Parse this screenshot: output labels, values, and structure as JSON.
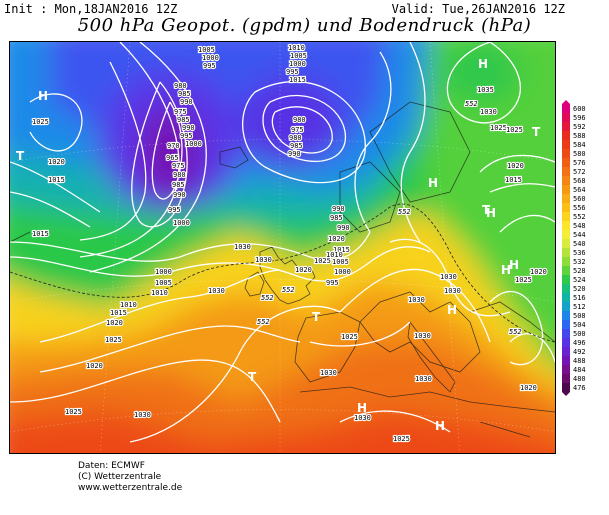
{
  "header": {
    "init": "Init : Mon,18JAN2016 12Z",
    "valid": "Valid: Tue,26JAN2016 12Z",
    "title": "500 hPa Geopot. (gpdm) und Bodendruck (hPa)"
  },
  "legend": {
    "values": [
      "600",
      "596",
      "592",
      "588",
      "584",
      "580",
      "576",
      "572",
      "568",
      "564",
      "560",
      "556",
      "552",
      "548",
      "544",
      "540",
      "536",
      "532",
      "528",
      "524",
      "520",
      "516",
      "512",
      "508",
      "504",
      "500",
      "496",
      "492",
      "488",
      "484",
      "480",
      "476"
    ],
    "colors": [
      "#e0007a",
      "#e20a58",
      "#e6183a",
      "#e92a1e",
      "#ec3a16",
      "#ee4b14",
      "#f05e14",
      "#f27114",
      "#f48514",
      "#f69814",
      "#f8ac16",
      "#fac018",
      "#fcd41e",
      "#fde52a",
      "#f4ee3a",
      "#d8ec3e",
      "#b4e43c",
      "#8edc3a",
      "#5ed43a",
      "#2ec84a",
      "#18c07a",
      "#10b4a4",
      "#12a2cc",
      "#1c86e8",
      "#2c66f2",
      "#4248f0",
      "#5832e6",
      "#6a22d2",
      "#7414b6",
      "#78108e",
      "#6a0c6a",
      "#4c0a4c"
    ]
  },
  "map": {
    "pressure_systems": [
      {
        "label": "H",
        "name": "high-atlantic-nw"
      },
      {
        "label": "H",
        "name": "high-scandinavia"
      },
      {
        "label": "T",
        "name": "low-north-atlantic"
      },
      {
        "label": "T",
        "name": "low-russia"
      },
      {
        "label": "H",
        "name": "high-central-europe"
      },
      {
        "label": "H",
        "name": "high-east-europe"
      },
      {
        "label": "H",
        "name": "high-azores"
      },
      {
        "label": "T",
        "name": "low-iberia"
      },
      {
        "label": "T",
        "name": "low-biscay"
      },
      {
        "label": "H",
        "name": "high-med-west"
      },
      {
        "label": "H",
        "name": "high-med-east"
      },
      {
        "label": "T",
        "name": "low-west-edge"
      },
      {
        "label": "T",
        "name": "low-baltic"
      },
      {
        "label": "H",
        "name": "high-balkan"
      },
      {
        "label": "H",
        "name": "high-russia-south"
      }
    ],
    "isobar_labels": [
      "1005",
      "1000",
      "995",
      "1010",
      "1005",
      "1000",
      "995",
      "1015",
      "1025",
      "980",
      "985",
      "990",
      "975",
      "985",
      "990",
      "995",
      "1000",
      "970",
      "965",
      "975",
      "980",
      "985",
      "990",
      "995",
      "1000",
      "980",
      "975",
      "980",
      "985",
      "990",
      "1020",
      "1015",
      "1015",
      "1000",
      "1005",
      "1010",
      "1010",
      "1015",
      "1020",
      "1025",
      "1030",
      "1030",
      "1020",
      "1025",
      "1030",
      "1020",
      "1025",
      "1030",
      "1035",
      "1030",
      "1025",
      "1025",
      "1020",
      "1015",
      "1020",
      "1025",
      "1030",
      "1030",
      "1030",
      "1025",
      "1030",
      "1030",
      "1020",
      "1030",
      "1030",
      "1025",
      "1020",
      "1015",
      "1010",
      "1005",
      "1000",
      "995",
      "990",
      "985",
      "990"
    ],
    "height_labels": [
      "552",
      "552",
      "552",
      "552",
      "552",
      "552"
    ]
  },
  "footer": {
    "line1": "Daten: ECMWF",
    "line2": "(C) Wetterzentrale",
    "line3": "www.wetterzentrale.de"
  }
}
